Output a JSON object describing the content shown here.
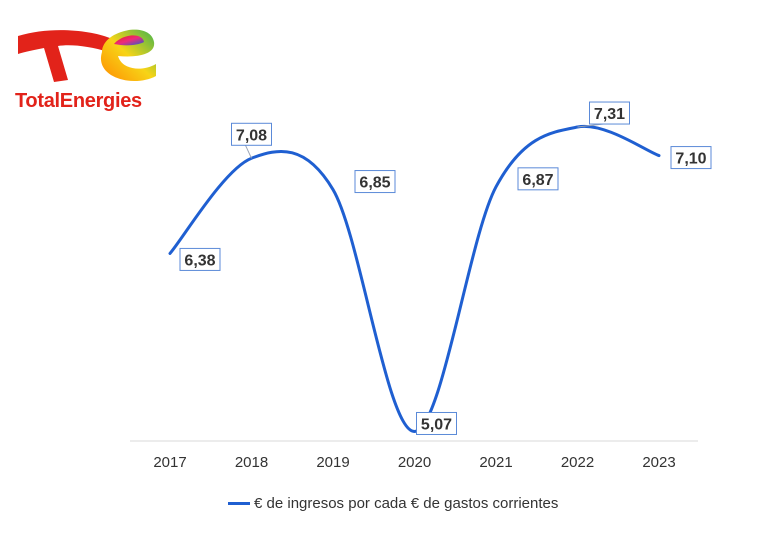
{
  "brand": {
    "name": "TotalEnergies"
  },
  "chart_data": {
    "type": "line",
    "categories": [
      "2017",
      "2018",
      "2019",
      "2020",
      "2021",
      "2022",
      "2023"
    ],
    "series": [
      {
        "name": "€ de ingresos por cada € de gastos corrientes",
        "values": [
          6.38,
          7.08,
          6.85,
          5.07,
          6.87,
          7.31,
          7.1
        ],
        "labels": [
          "6,38",
          "7,08",
          "6,85",
          "5,07",
          "6,87",
          "7,31",
          "7,10"
        ],
        "color": "#1f5fd1"
      }
    ],
    "ylim": [
      5.0,
      7.45
    ],
    "grid": false,
    "legend_position": "bottom",
    "title": "",
    "xlabel": "",
    "ylabel": ""
  }
}
